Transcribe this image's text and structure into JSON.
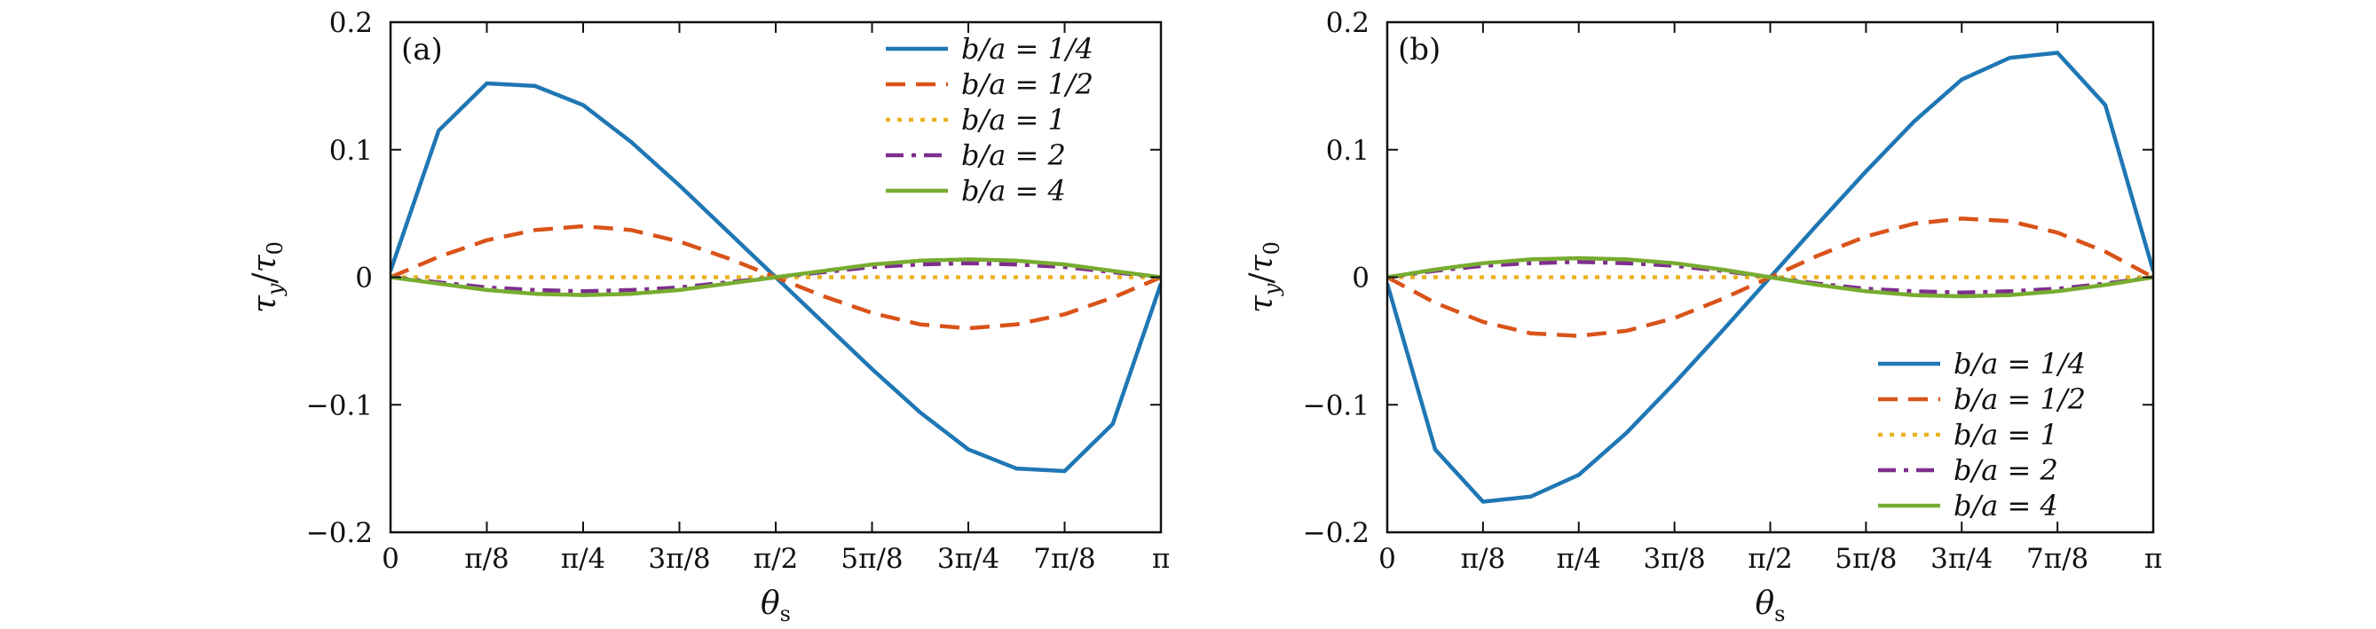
{
  "colors": {
    "b_a_1_4": "#1f77b4",
    "b_a_1_2": "#d95319",
    "b_a_1": "#edb120",
    "b_a_2": "#7e2f8e",
    "b_a_4": "#77ac30"
  },
  "chart_data": [
    {
      "type": "line",
      "panel_label": "(a)",
      "xlabel": "θs",
      "ylabel": "τy/τ0",
      "xlim": [
        0,
        3.14159
      ],
      "ylim": [
        -0.2,
        0.2
      ],
      "x_ticks": [
        0,
        0.3927,
        0.7854,
        1.1781,
        1.5708,
        1.9635,
        2.3562,
        2.7489,
        3.14159
      ],
      "x_tick_labels": [
        "0",
        "π/8",
        "π/4",
        "3π/8",
        "π/2",
        "5π/8",
        "3π/4",
        "7π/8",
        "π"
      ],
      "y_ticks": [
        -0.2,
        -0.1,
        0,
        0.1,
        0.2
      ],
      "y_tick_labels": [
        "−0.2",
        "−0.1",
        "0",
        "0.1",
        "0.2"
      ],
      "legend_position": "top-right",
      "grid": false,
      "x": [
        0,
        0.1963,
        0.3927,
        0.589,
        0.7854,
        0.9817,
        1.1781,
        1.3744,
        1.5708,
        1.7671,
        1.9635,
        2.1598,
        2.3562,
        2.5525,
        2.7489,
        2.9452,
        3.14159
      ],
      "series": [
        {
          "name": "b/a = 1/4",
          "color": "#1f77b4",
          "dash": "solid",
          "values": [
            0.005,
            0.115,
            0.152,
            0.15,
            0.135,
            0.106,
            0.072,
            0.036,
            0.0,
            -0.036,
            -0.072,
            -0.106,
            -0.135,
            -0.15,
            -0.152,
            -0.115,
            -0.005
          ]
        },
        {
          "name": "b/a = 1/2",
          "color": "#d95319",
          "dash": "dashed",
          "values": [
            0.0,
            0.016,
            0.029,
            0.037,
            0.04,
            0.037,
            0.028,
            0.015,
            0.0,
            -0.015,
            -0.028,
            -0.037,
            -0.04,
            -0.037,
            -0.029,
            -0.016,
            0.0
          ]
        },
        {
          "name": "b/a = 1",
          "color": "#edb120",
          "dash": "dotted",
          "values": [
            0,
            0,
            0,
            0,
            0,
            0,
            0,
            0,
            0,
            0,
            0,
            0,
            0,
            0,
            0,
            0,
            0
          ]
        },
        {
          "name": "b/a = 2",
          "color": "#7e2f8e",
          "dash": "dashdot",
          "values": [
            0.0,
            -0.004,
            -0.008,
            -0.01,
            -0.011,
            -0.01,
            -0.008,
            -0.004,
            0.0,
            0.004,
            0.008,
            0.01,
            0.011,
            0.01,
            0.008,
            0.004,
            0.0
          ]
        },
        {
          "name": "b/a = 4",
          "color": "#77ac30",
          "dash": "solid",
          "values": [
            0.0,
            -0.005,
            -0.01,
            -0.013,
            -0.014,
            -0.013,
            -0.01,
            -0.005,
            0.0,
            0.005,
            0.01,
            0.013,
            0.014,
            0.013,
            0.01,
            0.005,
            0.0
          ]
        }
      ]
    },
    {
      "type": "line",
      "panel_label": "(b)",
      "xlabel": "θs",
      "ylabel": "τy/τ0",
      "xlim": [
        0,
        3.14159
      ],
      "ylim": [
        -0.2,
        0.2
      ],
      "x_ticks": [
        0,
        0.3927,
        0.7854,
        1.1781,
        1.5708,
        1.9635,
        2.3562,
        2.7489,
        3.14159
      ],
      "x_tick_labels": [
        "0",
        "π/8",
        "π/4",
        "3π/8",
        "π/2",
        "5π/8",
        "3π/4",
        "7π/8",
        "π"
      ],
      "y_ticks": [
        -0.2,
        -0.1,
        0,
        0.1,
        0.2
      ],
      "y_tick_labels": [
        "−0.2",
        "−0.1",
        "0",
        "0.1",
        "0.2"
      ],
      "legend_position": "bottom-right",
      "grid": false,
      "x": [
        0,
        0.1963,
        0.3927,
        0.589,
        0.7854,
        0.9817,
        1.1781,
        1.3744,
        1.5708,
        1.7671,
        1.9635,
        2.1598,
        2.3562,
        2.5525,
        2.7489,
        2.9452,
        3.14159
      ],
      "series": [
        {
          "name": "b/a = 1/4",
          "color": "#1f77b4",
          "dash": "solid",
          "values": [
            -0.005,
            -0.135,
            -0.176,
            -0.172,
            -0.155,
            -0.122,
            -0.083,
            -0.042,
            0.0,
            0.042,
            0.083,
            0.122,
            0.155,
            0.172,
            0.176,
            0.135,
            0.005
          ]
        },
        {
          "name": "b/a = 1/2",
          "color": "#d95319",
          "dash": "dashed",
          "values": [
            0.0,
            -0.02,
            -0.035,
            -0.044,
            -0.046,
            -0.042,
            -0.032,
            -0.017,
            0.0,
            0.017,
            0.032,
            0.042,
            0.046,
            0.044,
            0.035,
            0.02,
            0.0
          ]
        },
        {
          "name": "b/a = 1",
          "color": "#edb120",
          "dash": "dotted",
          "values": [
            0,
            0,
            0,
            0,
            0,
            0,
            0,
            0,
            0,
            0,
            0,
            0,
            0,
            0,
            0,
            0,
            0
          ]
        },
        {
          "name": "b/a = 2",
          "color": "#7e2f8e",
          "dash": "dashdot",
          "values": [
            0.0,
            0.005,
            0.009,
            0.011,
            0.012,
            0.011,
            0.009,
            0.005,
            0.0,
            -0.005,
            -0.009,
            -0.011,
            -0.012,
            -0.011,
            -0.009,
            -0.005,
            0.0
          ]
        },
        {
          "name": "b/a = 4",
          "color": "#77ac30",
          "dash": "solid",
          "values": [
            0.0,
            0.006,
            0.011,
            0.014,
            0.015,
            0.014,
            0.011,
            0.006,
            0.0,
            -0.006,
            -0.011,
            -0.014,
            -0.015,
            -0.014,
            -0.011,
            -0.006,
            0.0
          ]
        }
      ]
    }
  ]
}
